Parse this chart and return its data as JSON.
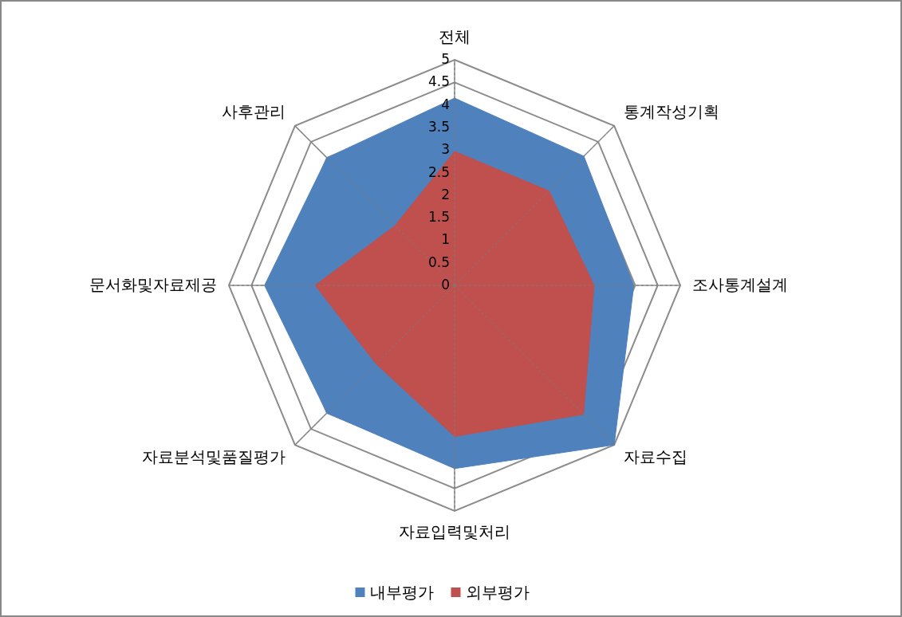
{
  "chart_data": {
    "type": "radar",
    "categories": [
      "전체",
      "통계작성기획",
      "조사통계설계",
      "자료수집",
      "자료입력및처리",
      "자료분석및품질평가",
      "문서화및자료제공",
      "사후관리"
    ],
    "series": [
      {
        "name": "내부평가",
        "color": "#4f81bd",
        "values": [
          4.15,
          4.05,
          3.97,
          5.0,
          4.06,
          4.0,
          4.21,
          4.0
        ]
      },
      {
        "name": "외부평가",
        "color": "#c0504d",
        "values": [
          2.97,
          2.96,
          3.09,
          4.04,
          3.35,
          2.46,
          3.09,
          1.87
        ]
      }
    ],
    "ylim": [
      0,
      5
    ],
    "yticks": [
      0,
      0.5,
      1,
      1.5,
      2,
      2.5,
      3,
      3.5,
      4,
      4.5,
      5
    ],
    "grid": true,
    "legend": "bottom"
  }
}
